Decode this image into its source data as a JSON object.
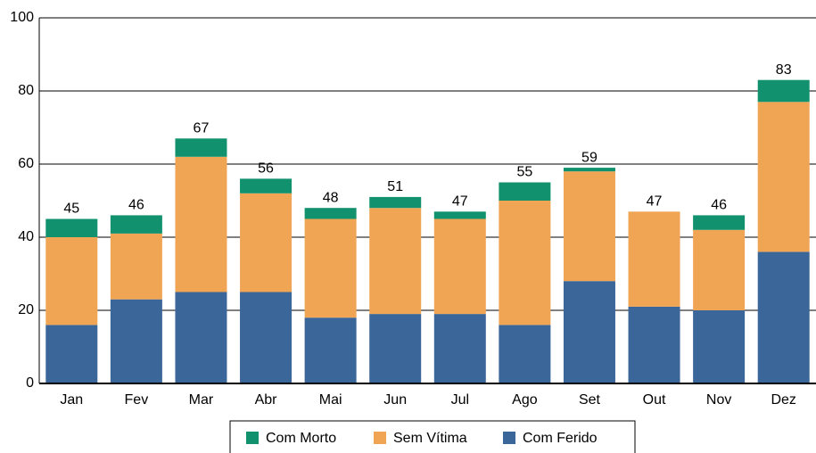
{
  "chart_data": {
    "type": "stacked_bar",
    "categories": [
      "Jan",
      "Fev",
      "Mar",
      "Abr",
      "Mai",
      "Jun",
      "Jul",
      "Ago",
      "Set",
      "Out",
      "Nov",
      "Dez"
    ],
    "series": [
      {
        "name": "Com Ferido",
        "color": "#3b6699",
        "values": [
          16,
          23,
          25,
          25,
          18,
          19,
          19,
          16,
          28,
          21,
          20,
          36
        ]
      },
      {
        "name": "Sem Vítima",
        "color": "#f0a555",
        "values": [
          24,
          18,
          37,
          27,
          27,
          29,
          26,
          34,
          30,
          26,
          22,
          41
        ]
      },
      {
        "name": "Com Morto",
        "color": "#11916e",
        "values": [
          5,
          5,
          5,
          4,
          3,
          3,
          2,
          5,
          1,
          0,
          4,
          6
        ]
      }
    ],
    "totals": [
      45,
      46,
      67,
      56,
      48,
      51,
      47,
      55,
      59,
      47,
      46,
      83
    ],
    "ylim": [
      0,
      100
    ],
    "yticks": [
      0,
      20,
      40,
      60,
      80,
      100
    ],
    "grid": true
  }
}
